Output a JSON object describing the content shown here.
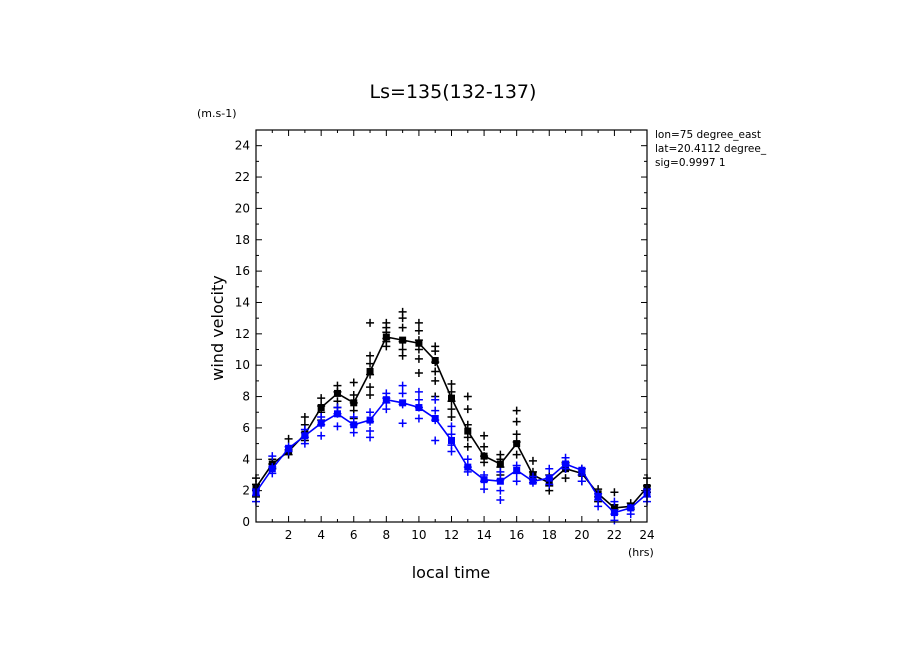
{
  "chart_data": {
    "type": "scatter",
    "title": "Ls=135(132-137)",
    "xlabel": "local time",
    "ylabel": "wind velocity",
    "x_unit": "(hrs)",
    "y_unit": "(m.s-1)",
    "xlim": [
      0,
      24
    ],
    "ylim": [
      0,
      25
    ],
    "x_ticks": [
      2,
      4,
      6,
      8,
      10,
      12,
      14,
      16,
      18,
      20,
      22,
      24
    ],
    "y_ticks": [
      0,
      2,
      4,
      6,
      8,
      10,
      12,
      14,
      16,
      18,
      20,
      22,
      24
    ],
    "grid": false,
    "info_lines": [
      "lon=75 degree_east",
      "lat=20.4112 degree_",
      "sig=0.9997 1"
    ],
    "series": [
      {
        "color": "#000000",
        "marker": "line+plus",
        "mean": {
          "x": [
            0,
            1,
            2,
            3,
            4,
            5,
            6,
            7,
            8,
            9,
            10,
            11,
            12,
            13,
            14,
            15,
            16,
            17,
            18,
            19,
            20,
            21,
            22,
            23,
            24
          ],
          "y": [
            2.2,
            3.7,
            4.5,
            5.6,
            7.3,
            8.2,
            7.6,
            9.6,
            11.8,
            11.6,
            11.4,
            10.3,
            7.9,
            5.8,
            4.2,
            3.7,
            5.0,
            3.0,
            2.5,
            3.4,
            3.1,
            1.8,
            0.9,
            1.0,
            2.2
          ]
        },
        "samples": {
          "x": [
            0,
            0,
            0,
            0,
            1,
            1,
            1,
            2,
            2,
            2,
            3,
            3,
            3,
            3,
            4,
            4,
            4,
            4,
            5,
            5,
            5,
            5,
            6,
            6,
            6,
            6,
            6,
            7,
            7,
            7,
            7,
            7,
            7,
            8,
            8,
            8,
            8,
            8,
            8,
            9,
            9,
            9,
            9,
            9,
            9,
            10,
            10,
            10,
            10,
            10,
            10,
            11,
            11,
            11,
            11,
            11,
            11,
            12,
            12,
            12,
            12,
            12,
            13,
            13,
            13,
            13,
            13,
            14,
            14,
            14,
            14,
            15,
            15,
            15,
            15,
            16,
            16,
            16,
            16,
            16,
            17,
            17,
            17,
            18,
            18,
            18,
            19,
            19,
            19,
            20,
            20,
            20,
            21,
            21,
            21,
            22,
            22,
            22,
            23,
            23,
            24,
            24,
            24
          ],
          "y": [
            2.8,
            2.4,
            2.0,
            1.6,
            4.0,
            3.7,
            3.4,
            5.3,
            4.6,
            4.3,
            6.7,
            6.2,
            5.7,
            5.2,
            7.9,
            7.4,
            7.0,
            6.5,
            8.7,
            8.3,
            7.7,
            7.3,
            8.9,
            8.1,
            7.6,
            7.1,
            6.6,
            12.7,
            10.6,
            10.1,
            9.4,
            8.6,
            8.1,
            12.7,
            12.4,
            12.1,
            11.7,
            11.5,
            11.2,
            13.4,
            13.0,
            12.4,
            11.5,
            11.0,
            10.6,
            12.7,
            12.2,
            11.6,
            11.0,
            10.4,
            9.5,
            11.2,
            10.9,
            10.2,
            9.6,
            9.0,
            8.0,
            8.8,
            8.3,
            7.7,
            7.2,
            6.7,
            8.0,
            7.2,
            6.2,
            5.4,
            4.8,
            5.5,
            4.8,
            4.2,
            3.8,
            4.3,
            4.0,
            3.5,
            3.0,
            7.1,
            6.4,
            5.6,
            5.1,
            4.3,
            3.9,
            3.2,
            2.7,
            3.0,
            2.3,
            2.0,
            3.8,
            3.4,
            2.8,
            3.4,
            3.0,
            2.6,
            2.1,
            1.6,
            1.3,
            1.9,
            1.1,
            0.8,
            1.2,
            0.8,
            2.8,
            2.3,
            1.9
          ]
        }
      },
      {
        "color": "#0000ff",
        "marker": "line+plus",
        "mean": {
          "x": [
            0,
            1,
            2,
            3,
            4,
            5,
            6,
            7,
            8,
            9,
            10,
            11,
            12,
            13,
            14,
            15,
            16,
            17,
            18,
            19,
            20,
            21,
            22,
            23,
            24
          ],
          "y": [
            1.9,
            3.4,
            4.7,
            5.5,
            6.3,
            6.9,
            6.2,
            6.5,
            7.8,
            7.6,
            7.3,
            6.6,
            5.2,
            3.5,
            2.7,
            2.6,
            3.3,
            2.6,
            2.8,
            3.7,
            3.3,
            1.6,
            0.6,
            0.9,
            1.8
          ]
        },
        "samples": {
          "x": [
            0,
            0,
            0,
            1,
            1,
            1,
            2,
            2,
            3,
            3,
            3,
            4,
            4,
            4,
            5,
            5,
            5,
            6,
            6,
            6,
            7,
            7,
            7,
            7,
            8,
            8,
            8,
            8,
            9,
            9,
            9,
            9,
            10,
            10,
            10,
            10,
            11,
            11,
            11,
            11,
            12,
            12,
            12,
            12,
            13,
            13,
            13,
            14,
            14,
            14,
            15,
            15,
            15,
            15,
            16,
            16,
            16,
            17,
            17,
            18,
            18,
            18,
            19,
            19,
            19,
            20,
            20,
            20,
            21,
            21,
            21,
            22,
            22,
            22,
            23,
            23,
            24,
            24,
            24
          ],
          "y": [
            2.1,
            1.7,
            1.3,
            4.2,
            3.5,
            3.1,
            4.8,
            4.5,
            5.9,
            5.4,
            5.0,
            6.7,
            6.2,
            5.5,
            7.3,
            6.9,
            6.1,
            6.7,
            6.2,
            5.7,
            7.0,
            6.4,
            5.8,
            5.4,
            8.2,
            7.9,
            7.6,
            7.2,
            8.7,
            8.2,
            7.5,
            6.3,
            8.3,
            7.8,
            7.3,
            6.6,
            7.8,
            7.1,
            6.5,
            5.2,
            6.1,
            5.6,
            4.9,
            4.5,
            4.0,
            3.5,
            3.2,
            3.0,
            2.6,
            2.1,
            3.2,
            2.7,
            2.0,
            1.4,
            3.6,
            3.1,
            2.6,
            2.9,
            2.5,
            3.4,
            2.8,
            2.4,
            4.1,
            3.7,
            3.4,
            3.4,
            3.0,
            2.6,
            1.8,
            1.4,
            1.0,
            1.3,
            0.5,
            0.1,
            0.9,
            0.5,
            2.1,
            1.6,
            1.3
          ]
        }
      }
    ]
  }
}
